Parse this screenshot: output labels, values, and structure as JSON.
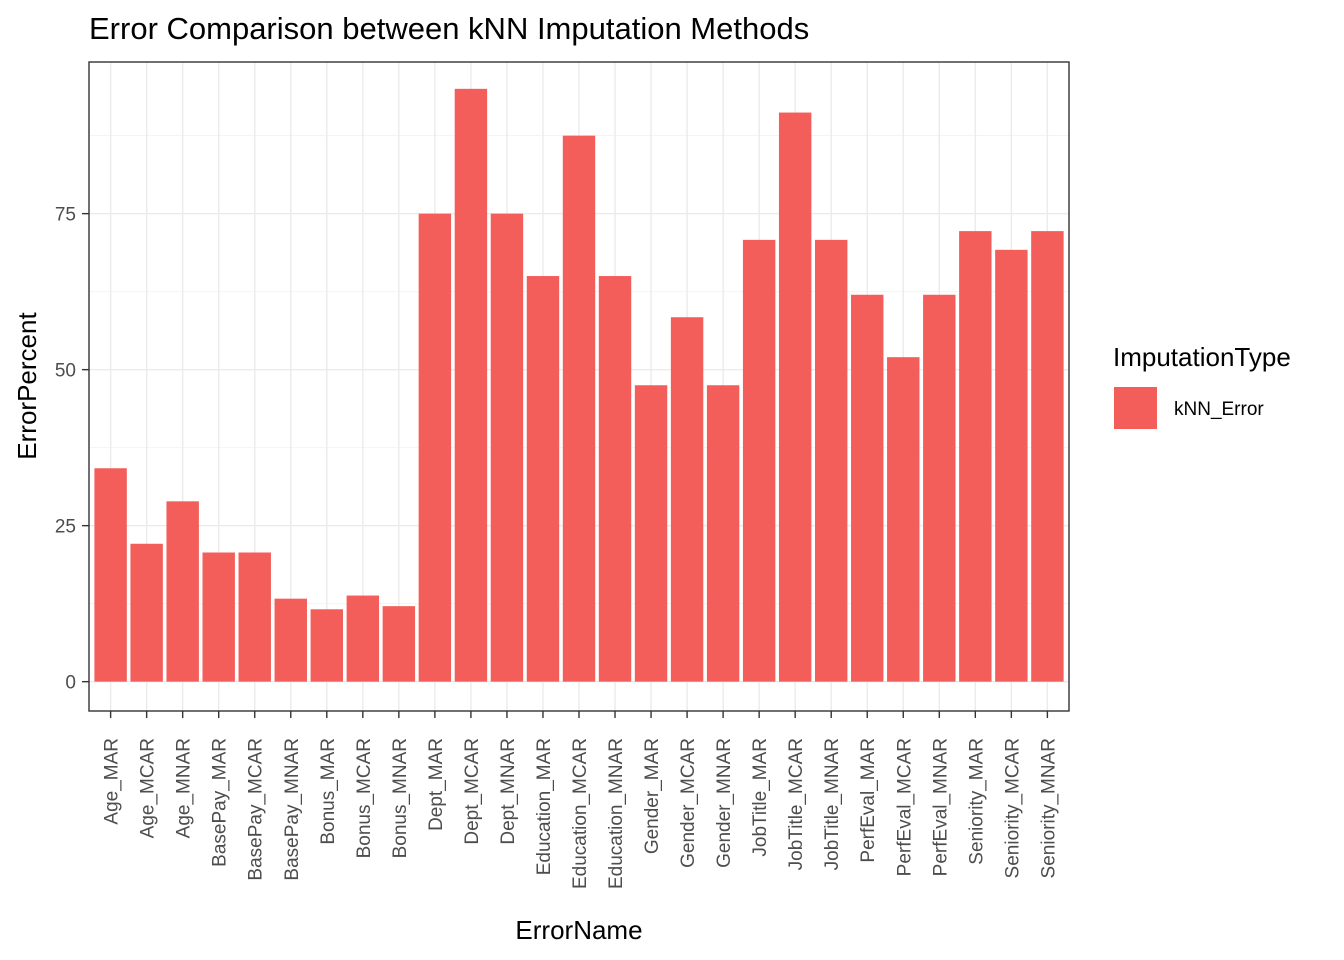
{
  "chart_data": {
    "type": "bar",
    "title": "Error Comparison between kNN Imputation Methods",
    "xlabel": "ErrorName",
    "ylabel": "ErrorPercent",
    "ylim": [
      -4.7,
      99.3
    ],
    "yticks": [
      0,
      25,
      50,
      75
    ],
    "grid": true,
    "legend": {
      "title": "ImputationType",
      "position": "right",
      "entries": [
        "kNN_Error"
      ]
    },
    "categories": [
      "Age_MAR",
      "Age_MCAR",
      "Age_MNAR",
      "BasePay_MAR",
      "BasePay_MCAR",
      "BasePay_MNAR",
      "Bonus_MAR",
      "Bonus_MCAR",
      "Bonus_MNAR",
      "Dept_MAR",
      "Dept_MCAR",
      "Dept_MNAR",
      "Education_MAR",
      "Education_MCAR",
      "Education_MNAR",
      "Gender_MAR",
      "Gender_MCAR",
      "Gender_MNAR",
      "JobTitle_MAR",
      "JobTitle_MCAR",
      "JobTitle_MNAR",
      "PerfEval_MAR",
      "PerfEval_MCAR",
      "PerfEval_MNAR",
      "Seniority_MAR",
      "Seniority_MCAR",
      "Seniority_MNAR"
    ],
    "series": [
      {
        "name": "kNN_Error",
        "color": "#F35E5A",
        "values": [
          34.2,
          22.1,
          28.9,
          20.7,
          20.7,
          13.3,
          11.6,
          13.8,
          12.1,
          75.0,
          95.0,
          75.0,
          65.0,
          87.5,
          65.0,
          47.5,
          58.4,
          47.5,
          70.8,
          91.2,
          70.8,
          62.0,
          52.0,
          62.0,
          72.2,
          69.2,
          72.2
        ]
      }
    ]
  }
}
